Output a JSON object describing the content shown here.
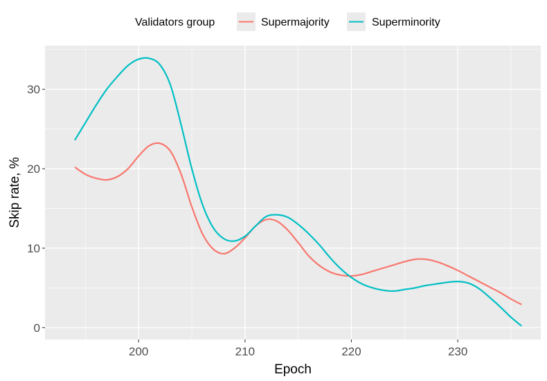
{
  "chart_data": {
    "type": "line",
    "title": "",
    "xlabel": "Epoch",
    "ylabel": "Skip rate, %",
    "xlim": [
      191.2,
      237.8
    ],
    "ylim": [
      -1.5,
      35.5
    ],
    "x_ticks": [
      200,
      210,
      220,
      230
    ],
    "y_ticks": [
      0,
      10,
      20,
      30
    ],
    "x_tick_labels": [
      "200",
      "210",
      "220",
      "230"
    ],
    "y_tick_labels": [
      "0",
      "10",
      "20",
      "30"
    ],
    "grid": true,
    "legend": {
      "title": "Validators group",
      "position": "top"
    },
    "series": [
      {
        "name": "Supermajority",
        "color": "#F8766D",
        "x": [
          194,
          195,
          196,
          197,
          198,
          199,
          200,
          201,
          202,
          203,
          204,
          205,
          206,
          207,
          208,
          209,
          210,
          211,
          212,
          213,
          214,
          215,
          216,
          217,
          218,
          219,
          220,
          221,
          222,
          223,
          224,
          225,
          226,
          227,
          228,
          229,
          230,
          231,
          232,
          233,
          234,
          235,
          236
        ],
        "y": [
          20.2,
          19.3,
          18.8,
          18.6,
          19.0,
          20.0,
          21.6,
          22.9,
          23.2,
          22.2,
          19.3,
          15.2,
          11.8,
          9.9,
          9.3,
          10.0,
          11.3,
          12.8,
          13.6,
          13.4,
          12.3,
          10.7,
          9.0,
          7.8,
          7.0,
          6.6,
          6.5,
          6.7,
          7.1,
          7.5,
          7.9,
          8.3,
          8.6,
          8.6,
          8.3,
          7.8,
          7.2,
          6.5,
          5.8,
          5.1,
          4.4,
          3.6,
          2.9
        ]
      },
      {
        "name": "Superminority",
        "color": "#00BFC4",
        "x": [
          194,
          195,
          196,
          197,
          198,
          199,
          200,
          201,
          202,
          203,
          204,
          205,
          206,
          207,
          208,
          209,
          210,
          211,
          212,
          213,
          214,
          215,
          216,
          217,
          218,
          219,
          220,
          221,
          222,
          223,
          224,
          225,
          226,
          227,
          228,
          229,
          230,
          231,
          232,
          233,
          234,
          235,
          236
        ],
        "y": [
          23.6,
          25.8,
          28.0,
          30.0,
          31.6,
          33.0,
          33.8,
          33.9,
          33.1,
          30.5,
          25.5,
          20.0,
          15.5,
          12.6,
          11.2,
          10.9,
          11.5,
          12.8,
          14.0,
          14.2,
          13.9,
          13.0,
          11.8,
          10.4,
          8.8,
          7.4,
          6.3,
          5.5,
          5.0,
          4.7,
          4.6,
          4.8,
          5.0,
          5.3,
          5.5,
          5.7,
          5.8,
          5.6,
          4.9,
          3.8,
          2.6,
          1.3,
          0.2
        ]
      }
    ]
  }
}
